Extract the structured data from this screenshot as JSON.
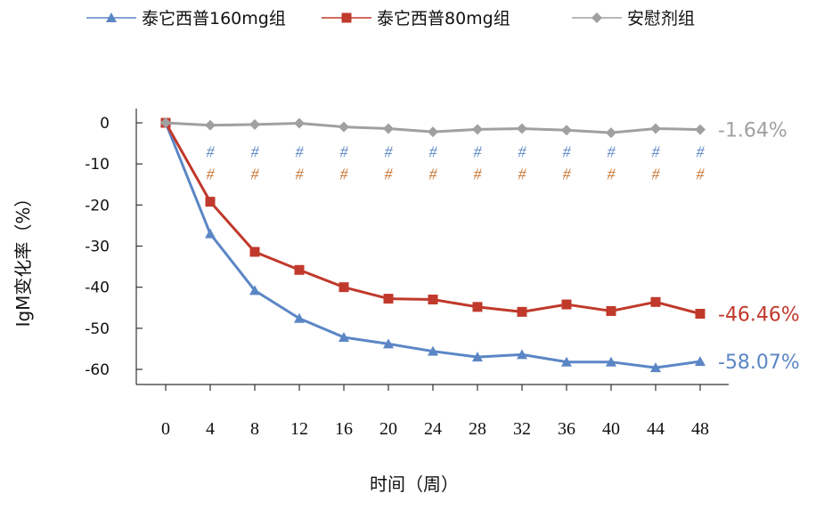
{
  "legend": [
    {
      "label": "泰它西普160mg组",
      "marker": "triangle",
      "color": "#5B86C5"
    },
    {
      "label": "泰它西普80mg组",
      "marker": "square",
      "color": "#C0392B"
    },
    {
      "label": "安慰剂组",
      "marker": "diamond",
      "color": "#A0A0A0"
    }
  ],
  "chart_data": {
    "type": "line",
    "xlabel": "时间（周）",
    "ylabel": "IgM变化率（%）",
    "x": [
      0,
      4,
      8,
      12,
      16,
      20,
      24,
      28,
      32,
      36,
      40,
      44,
      48
    ],
    "ylim": [
      -65,
      3
    ],
    "yticks": [
      0,
      -10,
      -20,
      -30,
      -40,
      -50,
      -60
    ],
    "ytick_labels": [
      "0",
      "-10",
      "-20",
      "-30",
      "-40",
      "-50",
      "-60"
    ],
    "legend_position": "top",
    "series": [
      {
        "name": "泰它西普160mg组",
        "color": "#5B86C5",
        "marker": "triangle",
        "values": [
          0,
          -27,
          -40.8,
          -47.6,
          -52.2,
          -53.8,
          -55.6,
          -57,
          -56.4,
          -58.2,
          -58.2,
          -59.6,
          -58.07
        ],
        "end_label": "-58.07%"
      },
      {
        "name": "泰它西普80mg组",
        "color": "#C0392B",
        "marker": "square",
        "values": [
          0,
          -19.2,
          -31.4,
          -35.8,
          -40,
          -42.8,
          -43,
          -44.8,
          -46,
          -44.2,
          -45.8,
          -43.6,
          -46.46
        ],
        "end_label": "-46.46%"
      },
      {
        "name": "安慰剂组",
        "color": "#A0A0A0",
        "marker": "diamond",
        "values": [
          0,
          -0.6,
          -0.4,
          -0.1,
          -1,
          -1.4,
          -2.2,
          -1.6,
          -1.4,
          -1.8,
          -2.4,
          -1.4,
          -1.64
        ],
        "end_label": "-1.64%"
      }
    ],
    "annotations": {
      "symbol": "#",
      "rows": [
        {
          "color": "#5B86C5",
          "y": -7,
          "x": [
            4,
            8,
            12,
            16,
            20,
            24,
            28,
            32,
            36,
            40,
            44,
            48
          ]
        },
        {
          "color": "#C87533",
          "y": -12.5,
          "x": [
            4,
            8,
            12,
            16,
            20,
            24,
            28,
            32,
            36,
            40,
            44,
            48
          ]
        }
      ]
    }
  }
}
